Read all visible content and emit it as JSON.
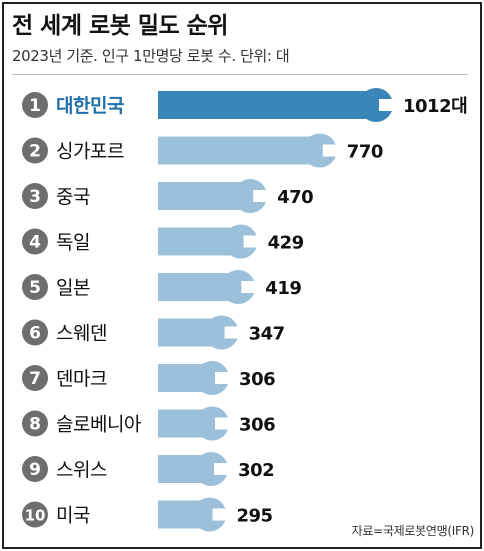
{
  "header": {
    "title": "전 세계 로봇 밀도 순위",
    "subtitle": "2023년 기준. 인구 1만명당 로봇 수. 단위: 대"
  },
  "source": "자료=국제로봇연맹(IFR)",
  "colors": {
    "highlight_bar": "#3a86b8",
    "bar": "#9cc0da",
    "highlight_text": "#1f6fa8",
    "rank_badge": "#6e6e6e",
    "text": "#111111"
  },
  "chart_data": {
    "type": "bar",
    "orientation": "horizontal",
    "title": "전 세계 로봇 밀도 순위",
    "subtitle": "2023년 기준. 인구 1만명당 로봇 수. 단위: 대",
    "ranks": [
      "1",
      "2",
      "3",
      "4",
      "5",
      "6",
      "7",
      "8",
      "9",
      "10"
    ],
    "categories": [
      "대한민국",
      "싱가포르",
      "중국",
      "독일",
      "일본",
      "스웨덴",
      "덴마크",
      "슬로베니아",
      "스위스",
      "미국"
    ],
    "values": [
      1012,
      770,
      470,
      429,
      419,
      347,
      306,
      306,
      302,
      295
    ],
    "value_labels": [
      "1012대",
      "770",
      "470",
      "429",
      "419",
      "347",
      "306",
      "306",
      "302",
      "295"
    ],
    "highlight_index": 0,
    "xlim": [
      0,
      1012
    ]
  }
}
